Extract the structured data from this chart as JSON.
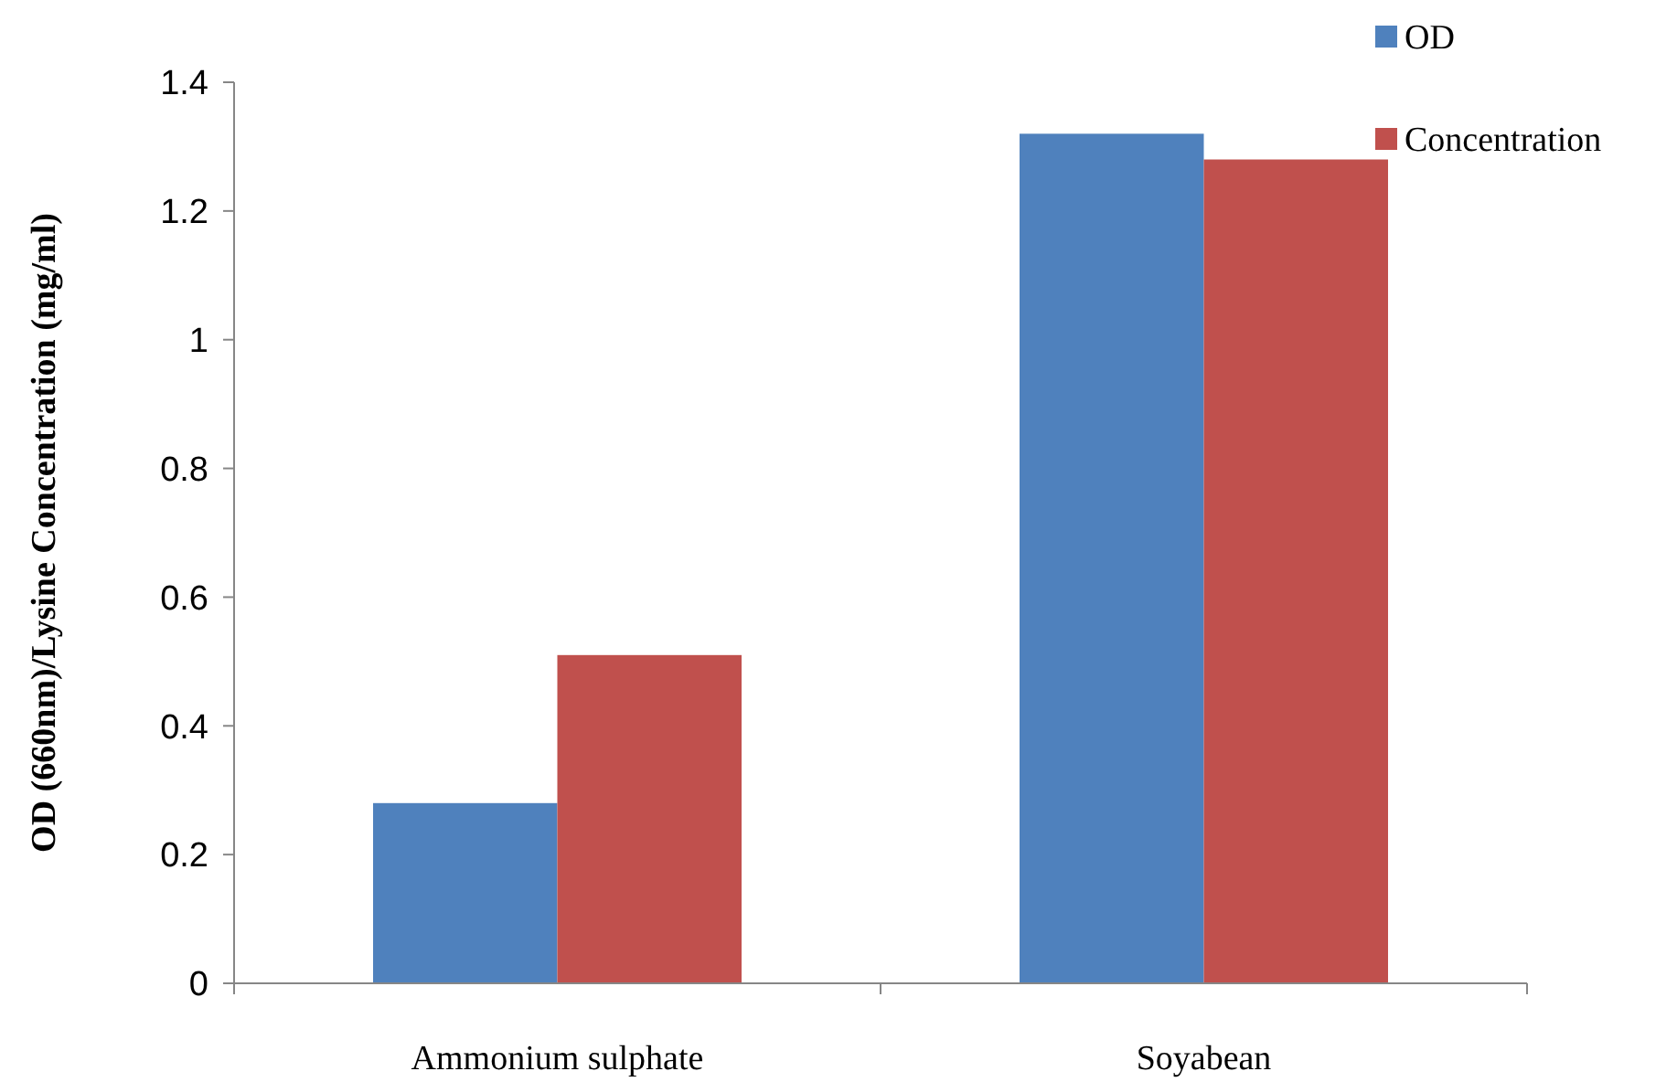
{
  "chart_data": {
    "type": "bar",
    "ylabel": "OD (660nm)/Lysine Concentration  (mg/ml)",
    "categories": [
      "Ammonium sulphate",
      "Soyabean"
    ],
    "series": [
      {
        "name": "OD",
        "color": "#4f81bd",
        "values": [
          0.28,
          1.32
        ]
      },
      {
        "name": "Concentration",
        "color": "#c0504d",
        "values": [
          0.51,
          1.28
        ]
      }
    ],
    "ylim": [
      0,
      1.4
    ],
    "yticks": [
      0,
      0.2,
      0.4,
      0.6,
      0.8,
      1,
      1.2,
      1.4
    ],
    "grid": false,
    "legend": "top right"
  }
}
